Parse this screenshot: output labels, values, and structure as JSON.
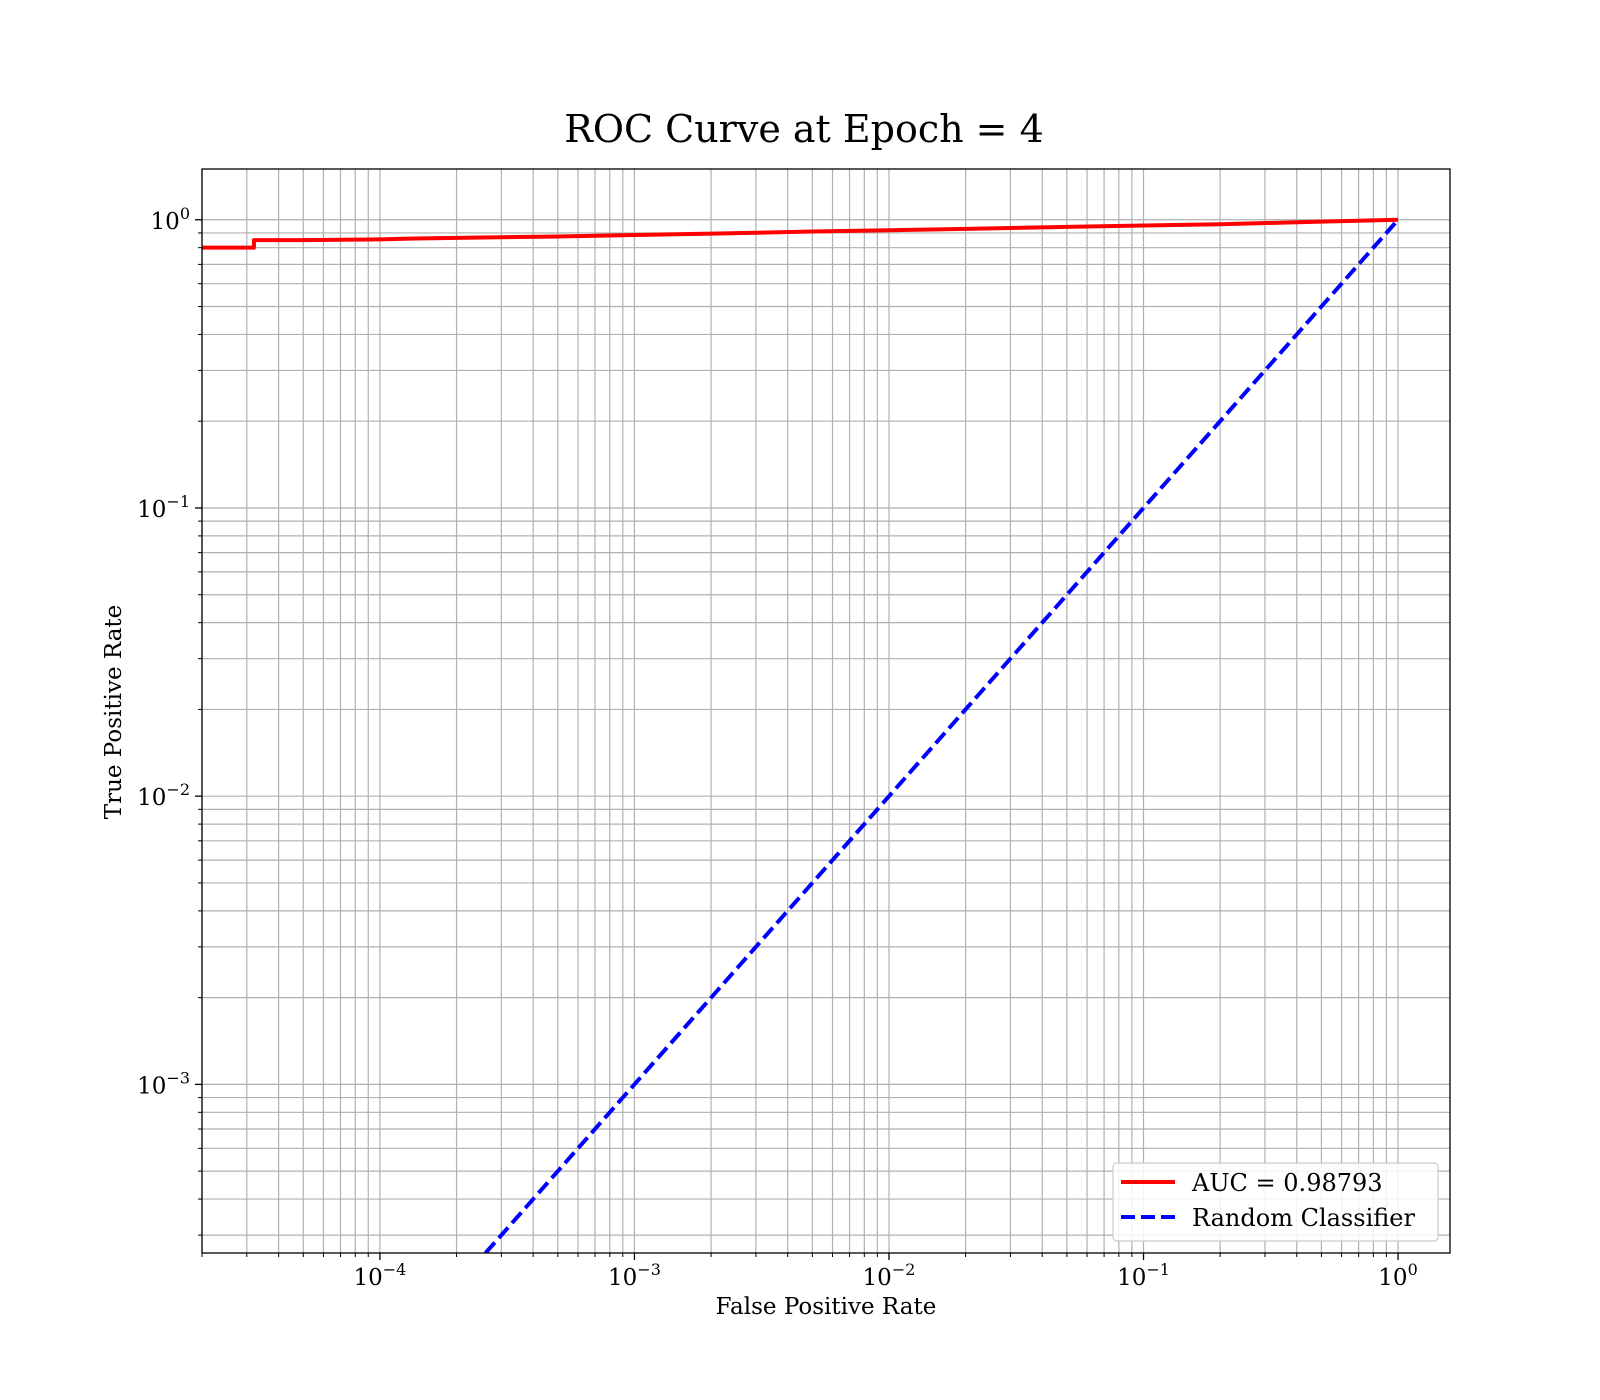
{
  "chart_data": {
    "type": "line",
    "title": "ROC Curve at Epoch = 4",
    "xlabel": "False Positive Rate",
    "ylabel": "True Positive Rate",
    "xscale": "log",
    "yscale": "log",
    "xlim": [
      2e-05,
      1.6
    ],
    "ylim": [
      0.00026,
      1.5
    ],
    "grid": "both-major-and-minor",
    "legend_position": "lower-right",
    "x_ticks": [
      {
        "value": 0.0001,
        "base": "10",
        "exp": "−4"
      },
      {
        "value": 0.001,
        "base": "10",
        "exp": "−3"
      },
      {
        "value": 0.01,
        "base": "10",
        "exp": "−2"
      },
      {
        "value": 0.1,
        "base": "10",
        "exp": "−1"
      },
      {
        "value": 1,
        "base": "10",
        "exp": "0"
      }
    ],
    "y_ticks": [
      {
        "value": 0.001,
        "base": "10",
        "exp": "−3"
      },
      {
        "value": 0.01,
        "base": "10",
        "exp": "−2"
      },
      {
        "value": 0.1,
        "base": "10",
        "exp": "−1"
      },
      {
        "value": 1,
        "base": "10",
        "exp": "0"
      }
    ],
    "series": [
      {
        "name": "AUC = 0.98793",
        "color": "#ff0000",
        "style": "solid",
        "x": [
          2e-05,
          3.2e-05,
          3.2e-05,
          5e-05,
          0.0001,
          0.00013,
          0.0002,
          0.0005,
          0.001,
          0.002,
          0.005,
          0.01,
          0.02,
          0.05,
          0.1,
          0.2,
          0.5,
          1.0
        ],
        "y": [
          0.8,
          0.8,
          0.85,
          0.85,
          0.855,
          0.86,
          0.865,
          0.875,
          0.885,
          0.895,
          0.91,
          0.92,
          0.93,
          0.945,
          0.955,
          0.965,
          0.985,
          1.0
        ]
      },
      {
        "name": "Random Classifier",
        "color": "#0000ff",
        "style": "dashed",
        "x": [
          0.00026,
          1.0
        ],
        "y": [
          0.00026,
          1.0
        ]
      }
    ]
  }
}
